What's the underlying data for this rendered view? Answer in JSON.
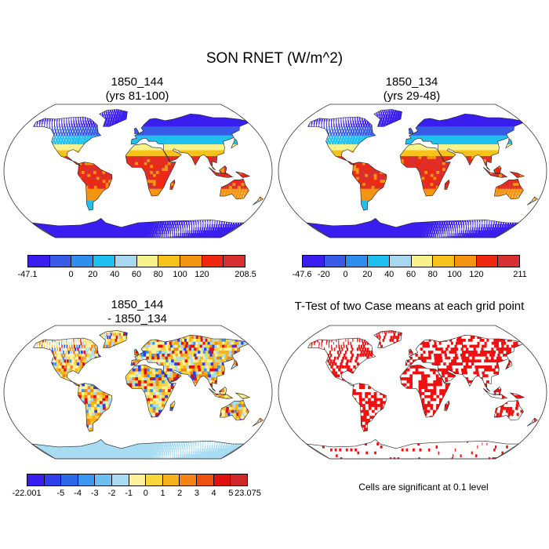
{
  "title": "SON RNET (W/m^2)",
  "panels": [
    {
      "id": "top-left",
      "title_line1": "1850_144",
      "title_line2": "(yrs 81-100)",
      "type": "warm-field",
      "colorbar": {
        "colors": [
          "#3a1ef0",
          "#3a5ae8",
          "#2f8ff0",
          "#1ec0f0",
          "#a8d8f0",
          "#f7f28a",
          "#f7c21b",
          "#f59412",
          "#f0280f",
          "#d83030"
        ],
        "labels": [
          "-47.1",
          "0",
          "20",
          "40",
          "60",
          "80",
          "100",
          "120",
          "208.5"
        ],
        "label_positions": [
          0,
          2,
          3,
          4,
          5,
          6,
          7,
          8,
          10
        ]
      }
    },
    {
      "id": "top-right",
      "title_line1": "1850_134",
      "title_line2": "(yrs 29-48)",
      "type": "warm-field",
      "colorbar": {
        "colors": [
          "#3a1ef0",
          "#3a5ae8",
          "#2f8ff0",
          "#1ec0f0",
          "#a8d8f0",
          "#f7f28a",
          "#f7c21b",
          "#f59412",
          "#f0280f",
          "#d83030"
        ],
        "labels": [
          "-47.6",
          "-20",
          "0",
          "20",
          "40",
          "60",
          "80",
          "100",
          "120",
          "211"
        ],
        "label_positions": [
          0,
          1,
          2,
          3,
          4,
          5,
          6,
          7,
          8,
          10
        ]
      }
    },
    {
      "id": "bottom-left",
      "title_line1": "1850_144",
      "title_line2": "- 1850_134",
      "type": "diff-field",
      "colorbar": {
        "colors": [
          "#3a1ef0",
          "#2e3ee8",
          "#2a68e8",
          "#3a96f0",
          "#6cc0ef",
          "#a8dcf3",
          "#fff29a",
          "#f9d63a",
          "#f7b21b",
          "#f48414",
          "#f04f12",
          "#e01010",
          "#d02828"
        ],
        "labels": [
          "-22.001",
          "-5",
          "-4",
          "-3",
          "-2",
          "-1",
          "0",
          "1",
          "2",
          "3",
          "4",
          "5",
          "23.075"
        ],
        "label_positions": [
          0,
          2,
          3,
          4,
          5,
          6,
          7,
          8,
          9,
          10,
          11,
          12,
          13
        ]
      }
    },
    {
      "id": "bottom-right",
      "title_line1": "T-Test of two Case means at each grid point",
      "title_line2": "",
      "type": "ttest",
      "note": "Cells are significant at 0.1 level"
    }
  ]
}
